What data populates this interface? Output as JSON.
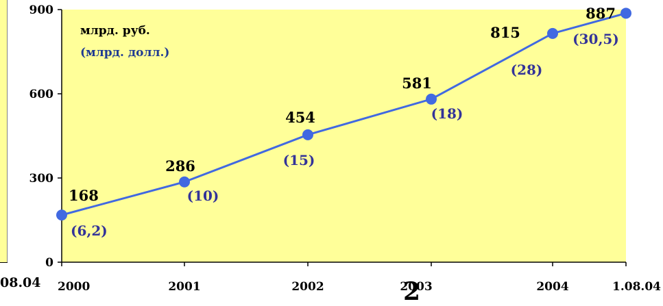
{
  "page": {
    "stray_label": "08.04",
    "stray_glyph": "2"
  },
  "chart_data": {
    "type": "line",
    "title": "",
    "unit_labels": [
      "млрд. руб.",
      "(млрд. долл.)"
    ],
    "categories": [
      "2000",
      "2001",
      "2002",
      "2003",
      "2004",
      "1.08.04"
    ],
    "series": [
      {
        "values": [
          168,
          286,
          454,
          581,
          815,
          887
        ]
      }
    ],
    "value_labels": [
      "168",
      "286",
      "454",
      "581",
      "815",
      "887"
    ],
    "secondary_labels": [
      "(6,2)",
      "(10)",
      "(15)",
      "(18)",
      "(28)",
      "(30,5)"
    ],
    "ylim": [
      0,
      900
    ],
    "yticks": [
      "0",
      "300",
      "600",
      "900"
    ],
    "grid": false,
    "colors": {
      "plot_background": "#ffff99",
      "line": "#4169e1",
      "marker": "#4169e1",
      "secondary_text": "#333399",
      "unit_secondary_text": "#1f3a93"
    }
  }
}
